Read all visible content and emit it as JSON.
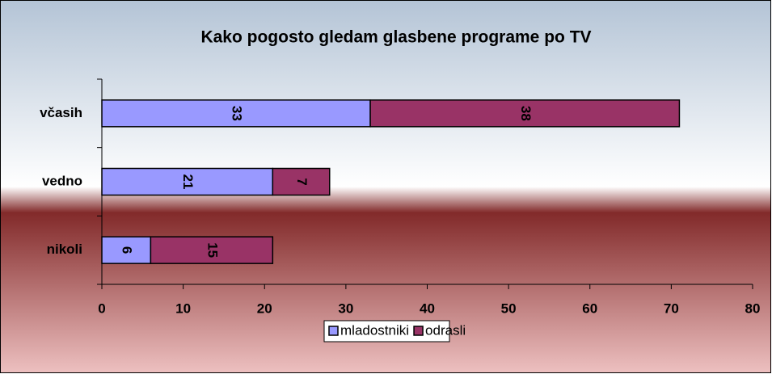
{
  "chart_data": {
    "type": "bar",
    "orientation": "horizontal",
    "stacked": true,
    "title": "Kako pogosto gledam glasbene programe po TV",
    "categories": [
      "včasih",
      "vedno",
      "nikoli"
    ],
    "series": [
      {
        "name": "mladostniki",
        "color": "#9999ff",
        "values": [
          33,
          21,
          6
        ]
      },
      {
        "name": "odrasli",
        "color": "#993366",
        "values": [
          38,
          7,
          15
        ]
      }
    ],
    "xlim": [
      0,
      80
    ],
    "xticks": [
      0,
      10,
      20,
      30,
      40,
      50,
      60,
      70,
      80
    ],
    "legend": "bottom"
  }
}
